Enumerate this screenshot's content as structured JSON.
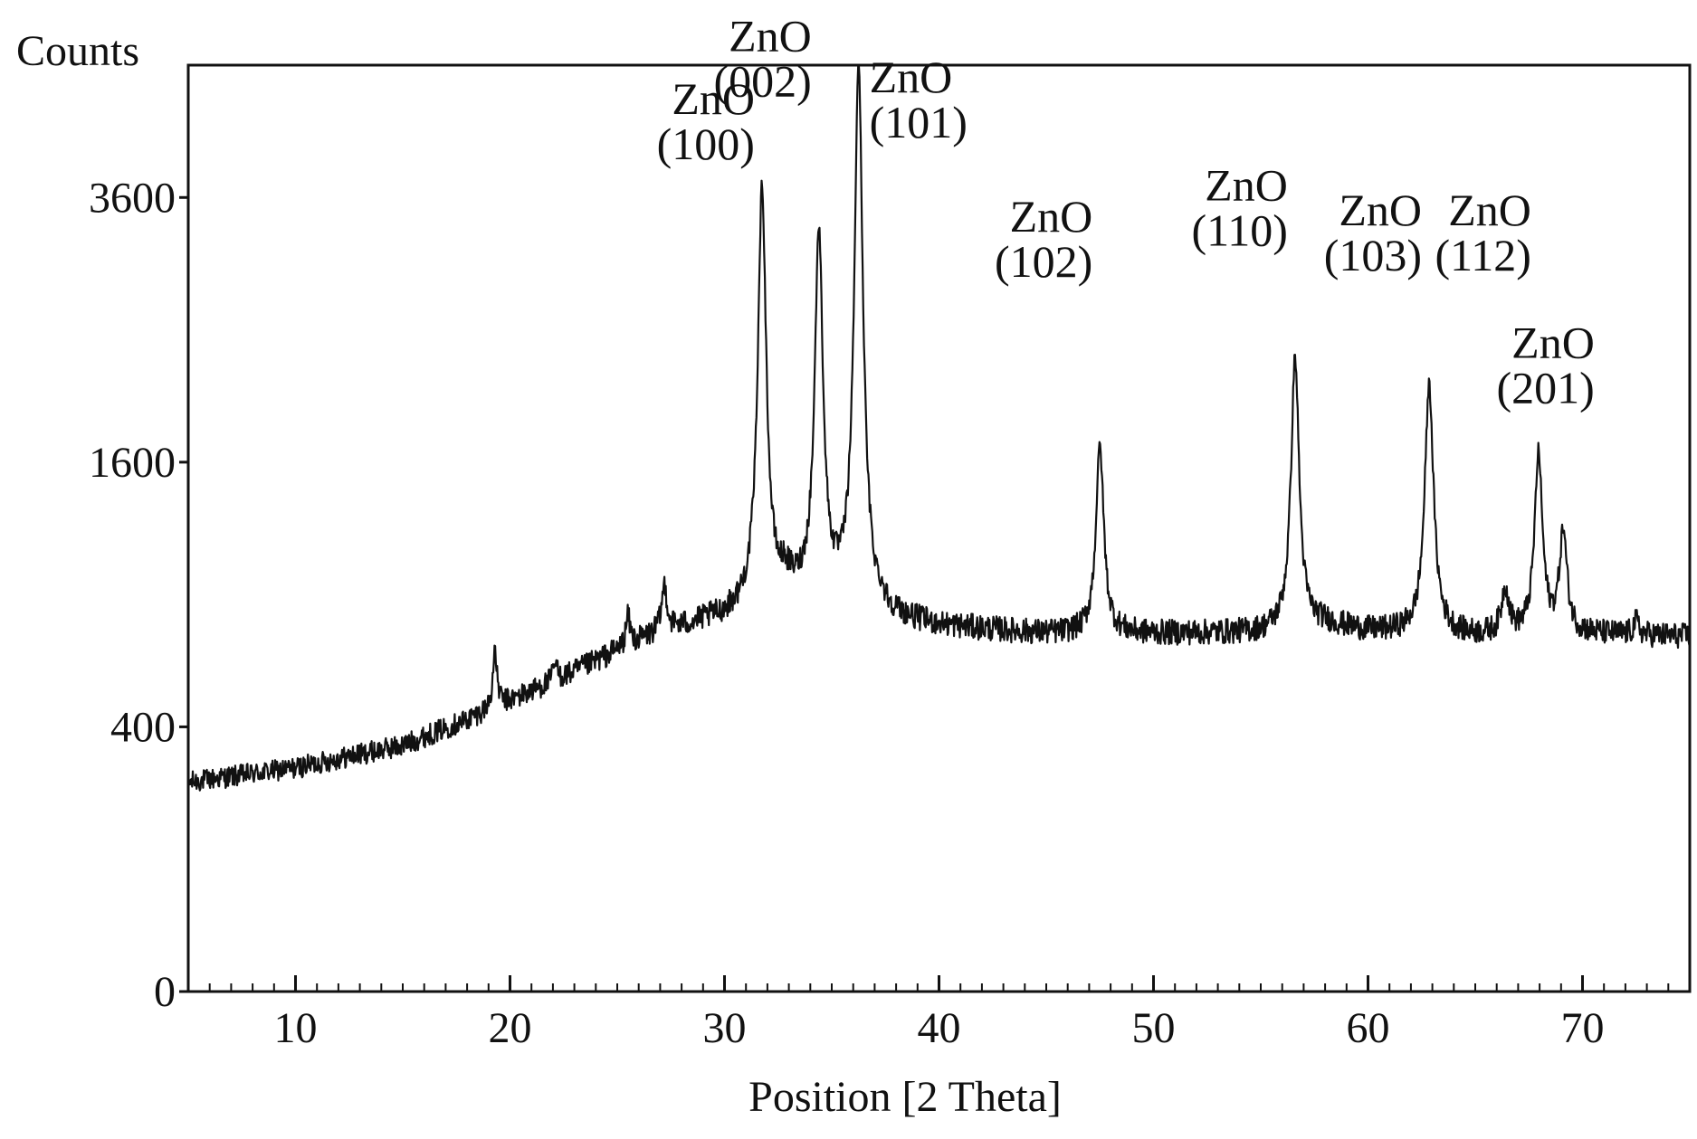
{
  "chart_data": {
    "type": "line",
    "ylabel": "Counts",
    "xlabel": "Position [2 Theta]",
    "xlim": [
      5,
      75
    ],
    "ylim": [
      0,
      4900
    ],
    "y_scale": "sqrt",
    "x_ticks": [
      10,
      20,
      30,
      40,
      50,
      60,
      70
    ],
    "x_tick_labels": [
      "10",
      "20",
      "30",
      "40",
      "50",
      "60",
      "70"
    ],
    "y_ticks": [
      0,
      400,
      1600,
      3600
    ],
    "y_tick_labels": [
      "0",
      "400",
      "1600",
      "3600"
    ],
    "grid": false,
    "legend": "none",
    "line_color": "#111111",
    "background": [
      {
        "x": 5,
        "y": 250
      },
      {
        "x": 10,
        "y": 285
      },
      {
        "x": 15,
        "y": 345
      },
      {
        "x": 18,
        "y": 420
      },
      {
        "x": 20,
        "y": 480
      },
      {
        "x": 23,
        "y": 580
      },
      {
        "x": 25,
        "y": 660
      },
      {
        "x": 27,
        "y": 735
      },
      {
        "x": 30,
        "y": 800
      },
      {
        "x": 32,
        "y": 860
      },
      {
        "x": 33,
        "y": 900
      },
      {
        "x": 35,
        "y": 860
      },
      {
        "x": 37,
        "y": 800
      },
      {
        "x": 40,
        "y": 760
      },
      {
        "x": 45,
        "y": 730
      },
      {
        "x": 50,
        "y": 730
      },
      {
        "x": 55,
        "y": 735
      },
      {
        "x": 58,
        "y": 770
      },
      {
        "x": 60,
        "y": 740
      },
      {
        "x": 65,
        "y": 720
      },
      {
        "x": 70,
        "y": 730
      },
      {
        "x": 75,
        "y": 720
      }
    ],
    "peaks": [
      {
        "x": 19.3,
        "y": 650,
        "width": 0.12
      },
      {
        "x": 22.1,
        "y": 610,
        "width": 0.12
      },
      {
        "x": 25.5,
        "y": 800,
        "width": 0.12
      },
      {
        "x": 27.2,
        "y": 940,
        "width": 0.14
      },
      {
        "x": 31.75,
        "y": 3700,
        "width": 0.2
      },
      {
        "x": 32.8,
        "y": 950,
        "width": 0.2
      },
      {
        "x": 34.4,
        "y": 3300,
        "width": 0.2
      },
      {
        "x": 36.25,
        "y": 4900,
        "width": 0.2
      },
      {
        "x": 37.3,
        "y": 820,
        "width": 0.15
      },
      {
        "x": 47.5,
        "y": 1700,
        "width": 0.2
      },
      {
        "x": 56.6,
        "y": 2300,
        "width": 0.2
      },
      {
        "x": 62.85,
        "y": 2100,
        "width": 0.22
      },
      {
        "x": 66.4,
        "y": 920,
        "width": 0.2
      },
      {
        "x": 67.95,
        "y": 1650,
        "width": 0.2
      },
      {
        "x": 69.1,
        "y": 1200,
        "width": 0.2
      },
      {
        "x": 72.5,
        "y": 780,
        "width": 0.15
      }
    ],
    "annotations": [
      {
        "x": 31.75,
        "y": 3700,
        "lines": [
          "ZnO",
          "(100)"
        ]
      },
      {
        "x": 34.4,
        "y": 4300,
        "lines": [
          "ZnO",
          "(002)"
        ]
      },
      {
        "x": 36.25,
        "y": 4900,
        "lines": [
          "ZnO",
          "(101)"
        ]
      },
      {
        "x": 47.5,
        "y": 2700,
        "lines": [
          "ZnO",
          "(102)"
        ]
      },
      {
        "x": 56.6,
        "y": 2950,
        "lines": [
          "ZnO",
          "(110)"
        ]
      },
      {
        "x": 62.85,
        "y": 2750,
        "lines": [
          "ZnO",
          "(103)"
        ]
      },
      {
        "x": 67.95,
        "y": 2750,
        "lines": [
          "ZnO",
          "(112)"
        ]
      },
      {
        "x": 70.9,
        "y": 1800,
        "lines": [
          "ZnO",
          "(201)"
        ]
      }
    ]
  }
}
